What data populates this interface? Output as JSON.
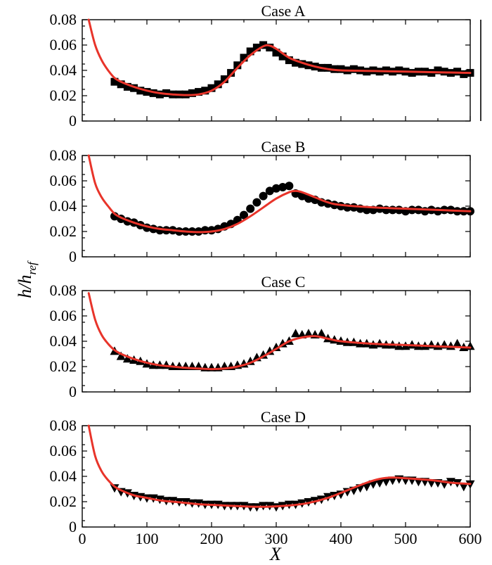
{
  "chart_data": {
    "type": "scatter",
    "xlabel": "X",
    "ylabel_main": "h/h",
    "ylabel_sub": "ref",
    "xlim": [
      0,
      600
    ],
    "ylim": [
      0,
      0.08
    ],
    "xticks": [
      "0",
      "100",
      "200",
      "300",
      "400",
      "500",
      "600"
    ],
    "yticks": [
      "0",
      "0.02",
      "0.04",
      "0.06",
      "0.08"
    ],
    "fit_color": "#e8342a",
    "marker_color": "#000000",
    "panels": [
      {
        "title": "Case A",
        "marker": "square",
        "data_x": [
          50,
          60,
          70,
          80,
          90,
          100,
          110,
          120,
          130,
          140,
          150,
          160,
          170,
          180,
          190,
          200,
          210,
          220,
          230,
          240,
          250,
          260,
          270,
          280,
          290,
          300,
          310,
          320,
          330,
          340,
          350,
          360,
          370,
          380,
          390,
          400,
          410,
          420,
          430,
          440,
          450,
          460,
          470,
          480,
          490,
          500,
          510,
          520,
          530,
          540,
          550,
          560,
          570,
          580,
          590,
          600
        ],
        "data_y": [
          0.031,
          0.029,
          0.027,
          0.026,
          0.024,
          0.023,
          0.022,
          0.021,
          0.022,
          0.021,
          0.021,
          0.021,
          0.022,
          0.023,
          0.024,
          0.026,
          0.029,
          0.033,
          0.038,
          0.044,
          0.05,
          0.055,
          0.058,
          0.06,
          0.058,
          0.054,
          0.051,
          0.048,
          0.046,
          0.045,
          0.044,
          0.043,
          0.042,
          0.042,
          0.041,
          0.041,
          0.04,
          0.041,
          0.04,
          0.039,
          0.04,
          0.039,
          0.04,
          0.039,
          0.04,
          0.039,
          0.038,
          0.039,
          0.039,
          0.038,
          0.04,
          0.039,
          0.038,
          0.039,
          0.037,
          0.038
        ],
        "fit_x": [
          10,
          20,
          30,
          40,
          50,
          60,
          80,
          100,
          120,
          140,
          160,
          180,
          200,
          220,
          240,
          260,
          280,
          290,
          300,
          320,
          340,
          360,
          380,
          400,
          450,
          500,
          550,
          600
        ],
        "fit_y": [
          0.08,
          0.06,
          0.048,
          0.04,
          0.034,
          0.031,
          0.027,
          0.024,
          0.022,
          0.021,
          0.0205,
          0.021,
          0.024,
          0.031,
          0.042,
          0.052,
          0.059,
          0.0595,
          0.057,
          0.05,
          0.046,
          0.043,
          0.041,
          0.04,
          0.0395,
          0.039,
          0.0385,
          0.038
        ]
      },
      {
        "title": "Case B",
        "marker": "circle",
        "data_x": [
          50,
          60,
          70,
          80,
          90,
          100,
          110,
          120,
          130,
          140,
          150,
          160,
          170,
          180,
          190,
          200,
          210,
          220,
          230,
          240,
          250,
          260,
          270,
          280,
          290,
          300,
          310,
          320,
          330,
          340,
          350,
          360,
          370,
          380,
          390,
          400,
          410,
          420,
          430,
          440,
          450,
          460,
          470,
          480,
          490,
          500,
          510,
          520,
          530,
          540,
          550,
          560,
          570,
          580,
          590,
          600
        ],
        "data_y": [
          0.032,
          0.03,
          0.028,
          0.027,
          0.025,
          0.023,
          0.022,
          0.021,
          0.021,
          0.021,
          0.02,
          0.02,
          0.02,
          0.02,
          0.021,
          0.021,
          0.022,
          0.024,
          0.026,
          0.029,
          0.033,
          0.038,
          0.043,
          0.048,
          0.052,
          0.054,
          0.055,
          0.056,
          0.05,
          0.048,
          0.046,
          0.045,
          0.043,
          0.042,
          0.041,
          0.04,
          0.039,
          0.039,
          0.038,
          0.037,
          0.037,
          0.038,
          0.037,
          0.037,
          0.037,
          0.036,
          0.037,
          0.037,
          0.036,
          0.037,
          0.036,
          0.037,
          0.037,
          0.036,
          0.036,
          0.036
        ],
        "fit_x": [
          10,
          20,
          30,
          40,
          50,
          60,
          80,
          100,
          120,
          140,
          160,
          180,
          200,
          220,
          240,
          260,
          280,
          300,
          320,
          330,
          340,
          360,
          380,
          400,
          450,
          500,
          550,
          600
        ],
        "fit_y": [
          0.08,
          0.058,
          0.047,
          0.04,
          0.034,
          0.031,
          0.027,
          0.024,
          0.022,
          0.021,
          0.02,
          0.0195,
          0.02,
          0.022,
          0.026,
          0.032,
          0.039,
          0.046,
          0.051,
          0.052,
          0.051,
          0.047,
          0.043,
          0.041,
          0.039,
          0.038,
          0.037,
          0.036
        ]
      },
      {
        "title": "Case C",
        "marker": "triangle-up",
        "data_x": [
          50,
          60,
          70,
          80,
          90,
          100,
          110,
          120,
          130,
          140,
          150,
          160,
          170,
          180,
          190,
          200,
          210,
          220,
          230,
          240,
          250,
          260,
          270,
          280,
          290,
          300,
          310,
          320,
          330,
          340,
          350,
          360,
          370,
          380,
          390,
          400,
          410,
          420,
          430,
          440,
          450,
          460,
          470,
          480,
          490,
          500,
          510,
          520,
          530,
          540,
          550,
          560,
          570,
          580,
          590,
          600
        ],
        "data_y": [
          0.032,
          0.028,
          0.026,
          0.025,
          0.024,
          0.022,
          0.021,
          0.021,
          0.021,
          0.02,
          0.02,
          0.02,
          0.02,
          0.02,
          0.019,
          0.019,
          0.019,
          0.02,
          0.02,
          0.021,
          0.022,
          0.024,
          0.027,
          0.029,
          0.032,
          0.035,
          0.038,
          0.04,
          0.046,
          0.045,
          0.046,
          0.045,
          0.046,
          0.042,
          0.041,
          0.04,
          0.039,
          0.039,
          0.038,
          0.038,
          0.037,
          0.038,
          0.037,
          0.037,
          0.036,
          0.036,
          0.037,
          0.036,
          0.036,
          0.037,
          0.036,
          0.037,
          0.036,
          0.038,
          0.035,
          0.036
        ],
        "fit_x": [
          10,
          20,
          30,
          40,
          50,
          60,
          80,
          100,
          120,
          140,
          160,
          180,
          200,
          220,
          240,
          260,
          280,
          300,
          320,
          340,
          360,
          380,
          400,
          450,
          500,
          550,
          600
        ],
        "fit_y": [
          0.078,
          0.057,
          0.045,
          0.038,
          0.033,
          0.03,
          0.026,
          0.023,
          0.021,
          0.02,
          0.019,
          0.0185,
          0.018,
          0.0185,
          0.02,
          0.023,
          0.028,
          0.034,
          0.04,
          0.043,
          0.044,
          0.042,
          0.04,
          0.038,
          0.037,
          0.036,
          0.035
        ]
      },
      {
        "title": "Case D",
        "marker": "triangle-down",
        "data_x": [
          50,
          60,
          70,
          80,
          90,
          100,
          110,
          120,
          130,
          140,
          150,
          160,
          170,
          180,
          190,
          200,
          210,
          220,
          230,
          240,
          250,
          260,
          270,
          280,
          290,
          300,
          310,
          320,
          330,
          340,
          350,
          360,
          370,
          380,
          390,
          400,
          410,
          420,
          430,
          440,
          450,
          460,
          470,
          480,
          490,
          500,
          510,
          520,
          530,
          540,
          550,
          560,
          570,
          580,
          590,
          600
        ],
        "data_y": [
          0.031,
          0.028,
          0.027,
          0.025,
          0.024,
          0.023,
          0.023,
          0.022,
          0.021,
          0.021,
          0.02,
          0.02,
          0.019,
          0.019,
          0.018,
          0.018,
          0.018,
          0.017,
          0.017,
          0.017,
          0.017,
          0.016,
          0.016,
          0.017,
          0.017,
          0.016,
          0.017,
          0.018,
          0.018,
          0.019,
          0.02,
          0.021,
          0.022,
          0.024,
          0.025,
          0.026,
          0.028,
          0.029,
          0.031,
          0.032,
          0.034,
          0.035,
          0.036,
          0.037,
          0.038,
          0.037,
          0.037,
          0.036,
          0.036,
          0.035,
          0.035,
          0.034,
          0.036,
          0.035,
          0.032,
          0.034
        ],
        "fit_x": [
          10,
          20,
          30,
          40,
          50,
          60,
          80,
          100,
          120,
          140,
          160,
          180,
          200,
          240,
          280,
          320,
          350,
          380,
          410,
          440,
          460,
          480,
          500,
          540,
          570,
          600
        ],
        "fit_y": [
          0.08,
          0.056,
          0.044,
          0.037,
          0.032,
          0.029,
          0.025,
          0.023,
          0.021,
          0.02,
          0.019,
          0.018,
          0.0175,
          0.0165,
          0.016,
          0.017,
          0.019,
          0.023,
          0.029,
          0.035,
          0.038,
          0.039,
          0.0385,
          0.037,
          0.035,
          0.034
        ]
      }
    ]
  }
}
